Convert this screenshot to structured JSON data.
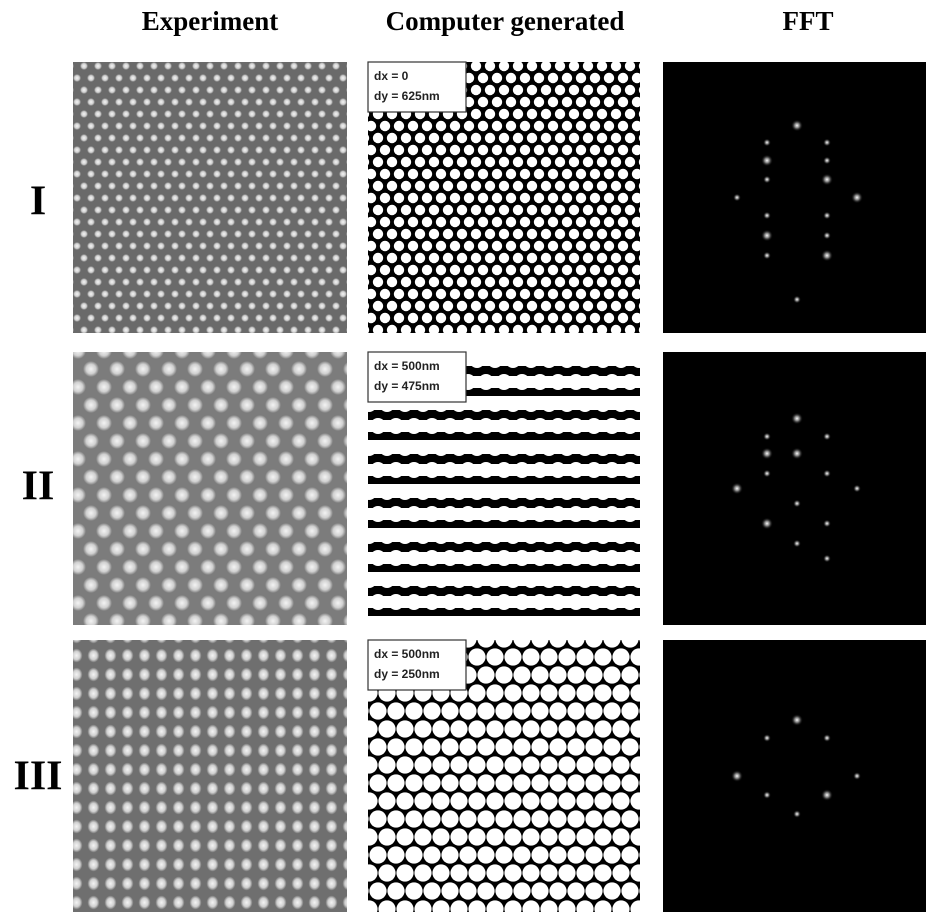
{
  "header": {
    "columns": [
      "Experiment",
      "Computer generated",
      "FFT"
    ]
  },
  "rows": [
    {
      "label": "I",
      "dx": "dx = 0",
      "dy": "dy = 625nm"
    },
    {
      "label": "II",
      "dx": "dx = 500nm",
      "dy": "dy = 475nm"
    },
    {
      "label": "III",
      "dx": "dx = 500nm",
      "dy": "dy = 250nm"
    }
  ]
}
